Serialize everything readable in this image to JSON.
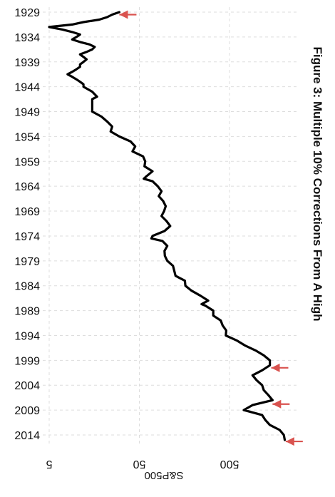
{
  "chart_data": {
    "type": "line",
    "title": "Figure 3: Multiple 10% Corrections From A High",
    "xlabel": "",
    "ylabel": "S&P500",
    "orientation": "rotated-90-clockwise",
    "y_scale": "log",
    "ylim": [
      5,
      2500
    ],
    "y_ticks": [
      5,
      50,
      500
    ],
    "y_tick_labels": [
      "5",
      "50",
      "500"
    ],
    "x_ticks": [
      1929,
      1934,
      1939,
      1944,
      1949,
      1954,
      1959,
      1964,
      1969,
      1974,
      1979,
      1984,
      1989,
      1994,
      1999,
      2004,
      2009,
      2014
    ],
    "x_tick_labels": [
      "1929",
      "1934",
      "1939",
      "1944",
      "1949",
      "1954",
      "1959",
      "1964",
      "1969",
      "1974",
      "1979",
      "1984",
      "1989",
      "1994",
      "1999",
      "2004",
      "2009",
      "2014"
    ],
    "xlim": [
      1929,
      2016
    ],
    "grid": true,
    "legend": "none",
    "series": [
      {
        "color": "#000000",
        "x": [
          1929.0,
          1929.5,
          1930.0,
          1930.5,
          1931.0,
          1931.5,
          1932.0,
          1932.5,
          1933.0,
          1933.5,
          1934.0,
          1934.5,
          1935.0,
          1935.5,
          1936.0,
          1936.5,
          1937.0,
          1937.5,
          1938.0,
          1938.5,
          1939.0,
          1939.5,
          1940.0,
          1940.5,
          1941.0,
          1941.5,
          1942.0,
          1942.5,
          1943.0,
          1943.5,
          1944.0,
          1945.0,
          1946.0,
          1946.5,
          1947.0,
          1948.0,
          1949.0,
          1950.0,
          1951.0,
          1952.0,
          1953.0,
          1954.0,
          1955.0,
          1956.0,
          1957.0,
          1958.0,
          1959.0,
          1960.0,
          1961.0,
          1962.0,
          1962.5,
          1963.0,
          1964.0,
          1965.0,
          1966.0,
          1967.0,
          1968.0,
          1969.0,
          1970.0,
          1971.0,
          1972.0,
          1973.0,
          1974.0,
          1974.5,
          1975.0,
          1976.0,
          1977.0,
          1978.0,
          1979.0,
          1980.0,
          1981.0,
          1982.0,
          1983.0,
          1984.0,
          1985.0,
          1986.0,
          1987.0,
          1987.7,
          1988.0,
          1989.0,
          1990.0,
          1991.0,
          1992.0,
          1993.0,
          1994.0,
          1995.0,
          1996.0,
          1997.0,
          1998.0,
          1999.0,
          2000.0,
          2001.0,
          2002.0,
          2003.0,
          2004.0,
          2005.0,
          2006.0,
          2007.0,
          2008.0,
          2009.0,
          2010.0,
          2011.0,
          2012.0,
          2013.0,
          2014.0,
          2015.0
        ],
        "y": [
          30,
          25,
          22,
          18,
          12,
          9,
          5,
          7,
          9,
          11,
          10,
          9,
          11,
          14,
          16,
          15,
          13,
          11,
          12,
          13,
          12,
          11,
          11,
          10,
          9,
          8,
          9,
          10,
          11,
          12,
          12,
          15,
          17,
          15,
          15,
          15,
          15,
          19,
          22,
          25,
          24,
          30,
          40,
          45,
          42,
          55,
          58,
          57,
          70,
          60,
          56,
          70,
          80,
          88,
          82,
          92,
          98,
          94,
          88,
          100,
          110,
          95,
          70,
          68,
          90,
          102,
          95,
          96,
          102,
          118,
          122,
          126,
          160,
          162,
          190,
          238,
          290,
          245,
          270,
          330,
          330,
          400,
          420,
          460,
          455,
          600,
          740,
          970,
          1200,
          1400,
          1400,
          1150,
          900,
          1000,
          1150,
          1200,
          1350,
          1500,
          900,
          720,
          1150,
          1250,
          1400,
          1800,
          2000,
          2050
        ]
      }
    ],
    "annotations": [
      {
        "type": "arrow",
        "x": 1929.5,
        "y": 30,
        "color": "#d9534f"
      },
      {
        "type": "arrow",
        "x": 2000.5,
        "y": 1450,
        "color": "#d9534f"
      },
      {
        "type": "arrow",
        "x": 2007.8,
        "y": 1500,
        "color": "#d9534f"
      },
      {
        "type": "arrow",
        "x": 2015.3,
        "y": 2100,
        "color": "#d9534f"
      }
    ]
  }
}
